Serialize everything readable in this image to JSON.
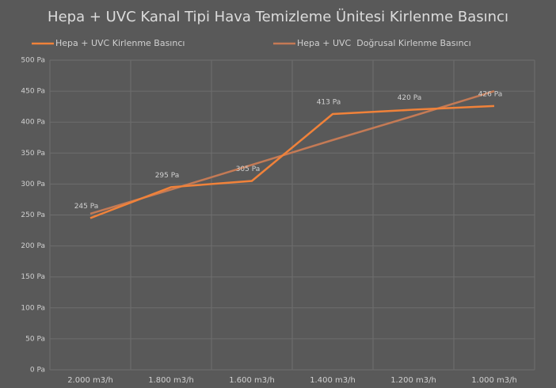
{
  "chart_data": {
    "type": "line",
    "title": "Hepa + UVC Kanal Tipi Hava Temizleme Ünitesi Kirlenme Basıncı",
    "categories": [
      "2.000 m3/h",
      "1.800 m3/h",
      "1.600 m3/h",
      "1.400 m3/h",
      "1.200 m3/h",
      "1.000 m3/h"
    ],
    "series": [
      {
        "name": "Hepa + UVC Kirlenme Basıncı",
        "color": "#f0823a",
        "values": [
          245,
          295,
          305,
          413,
          420,
          426
        ],
        "value_labels": [
          "245 Pa",
          "295 Pa",
          "305 Pa",
          "413 Pa",
          "420 Pa",
          "426 Pa"
        ]
      },
      {
        "name": "Hepa + UVC  Doğrusal Kirlenme Basıncı",
        "color": "#c47a55",
        "values": [
          252,
          291,
          331,
          371,
          410,
          450
        ]
      }
    ],
    "ylim": [
      0,
      500
    ],
    "yticks": [
      {
        "value": 0,
        "label": "0 Pa"
      },
      {
        "value": 50,
        "label": "50 Pa"
      },
      {
        "value": 100,
        "label": "100 Pa"
      },
      {
        "value": 150,
        "label": "150 Pa"
      },
      {
        "value": 200,
        "label": "200 Pa"
      },
      {
        "value": 250,
        "label": "250 Pa"
      },
      {
        "value": 300,
        "label": "300 Pa"
      },
      {
        "value": 350,
        "label": "350 Pa"
      },
      {
        "value": 400,
        "label": "400 Pa"
      },
      {
        "value": 450,
        "label": "450 Pa"
      },
      {
        "value": 500,
        "label": "500 Pa"
      }
    ],
    "grid": true,
    "legend": "top"
  }
}
